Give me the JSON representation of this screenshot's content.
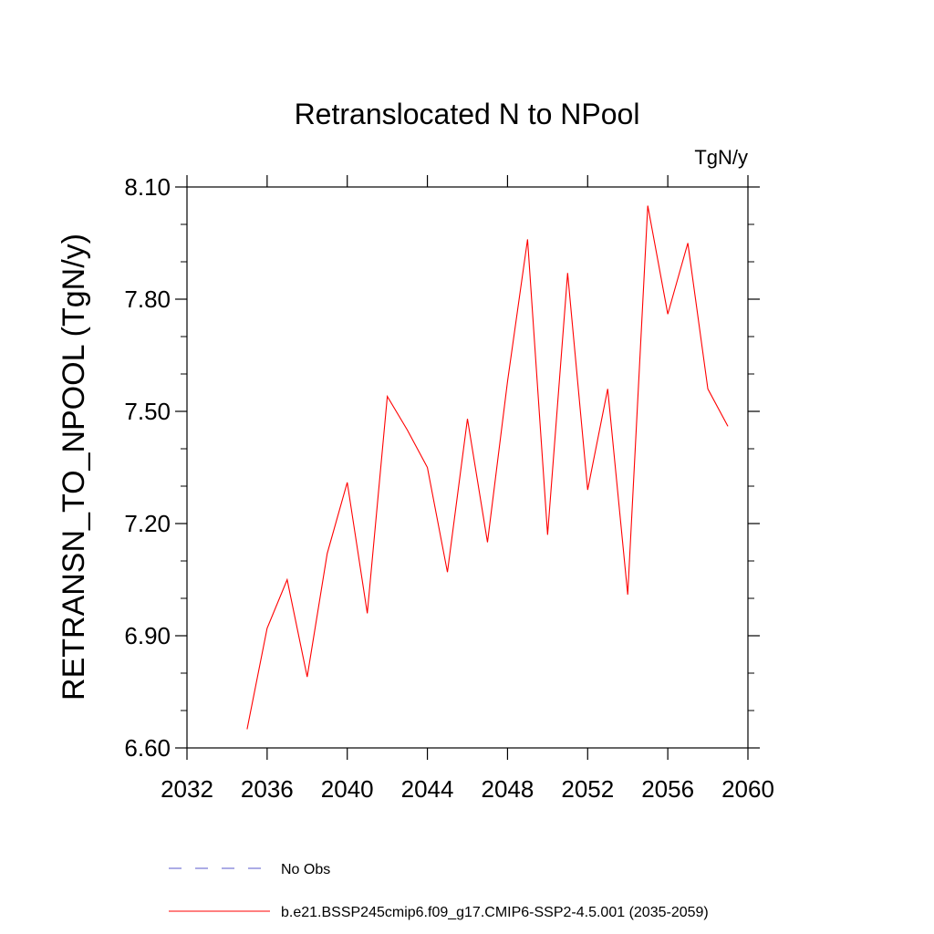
{
  "chart_data": {
    "type": "line",
    "title": "Retranslocated N to NPool",
    "units_label": "TgN/y",
    "xlabel": "",
    "ylabel": "RETRANSN_TO_NPOOL  (TgN/y)",
    "xlim": [
      2032,
      2060
    ],
    "ylim": [
      6.6,
      8.1
    ],
    "xticks": [
      2032,
      2036,
      2040,
      2044,
      2048,
      2052,
      2056,
      2060
    ],
    "xtick_labels": [
      "2032",
      "2036",
      "2040",
      "2044",
      "2048",
      "2052",
      "2056",
      "2060"
    ],
    "yticks": [
      6.6,
      6.9,
      7.2,
      7.5,
      7.8,
      8.1
    ],
    "ytick_labels": [
      "6.60",
      "6.90",
      "7.20",
      "7.50",
      "7.80",
      "8.10"
    ],
    "grid": false,
    "legend_position": "bottom",
    "series": [
      {
        "name": "b.e21.BSSP245cmip6.f09_g17.CMIP6-SSP2-4.5.001 (2035-2059)",
        "color": "#ff0000",
        "style": "solid",
        "x": [
          2035,
          2036,
          2037,
          2038,
          2039,
          2040,
          2041,
          2042,
          2043,
          2044,
          2045,
          2046,
          2047,
          2048,
          2049,
          2050,
          2051,
          2052,
          2053,
          2054,
          2055,
          2056,
          2057,
          2058,
          2059
        ],
        "y": [
          6.65,
          6.92,
          7.05,
          6.79,
          7.12,
          7.31,
          6.96,
          7.54,
          7.45,
          7.35,
          7.07,
          7.48,
          7.15,
          7.58,
          7.96,
          7.17,
          7.87,
          7.29,
          7.56,
          7.01,
          8.05,
          7.76,
          7.95,
          7.56,
          7.46
        ]
      }
    ],
    "legend": [
      {
        "label": "No Obs",
        "color": "#5a5acd",
        "style": "dashed"
      },
      {
        "label": "b.e21.BSSP245cmip6.f09_g17.CMIP6-SSP2-4.5.001 (2035-2059)",
        "color": "#ff0000",
        "style": "solid"
      }
    ]
  }
}
